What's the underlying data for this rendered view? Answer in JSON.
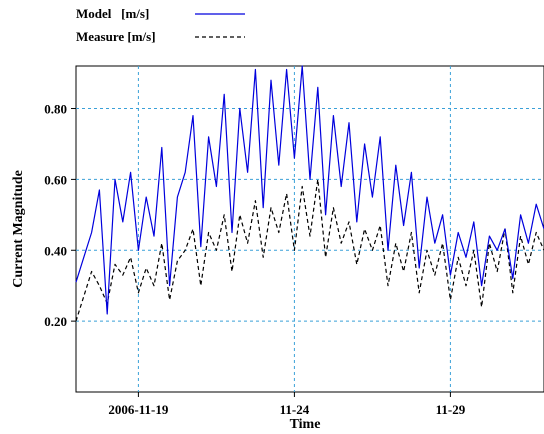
{
  "chart_data": {
    "type": "line",
    "xlabel": "Time",
    "ylabel": "Current Magnitude",
    "x_range": [
      "2006-11-17",
      "2006-12-02"
    ],
    "ylim": [
      0,
      0.92
    ],
    "y_ticks": [
      {
        "value": 0.2,
        "label": "0.20"
      },
      {
        "value": 0.4,
        "label": "0.40"
      },
      {
        "value": 0.6,
        "label": "0.60"
      },
      {
        "value": 0.8,
        "label": "0.80"
      }
    ],
    "x_ticks": [
      {
        "value": "2006-11-19",
        "label": "2006-11-19"
      },
      {
        "value": "2006-11-24",
        "label": "11-24"
      },
      {
        "value": "2006-11-29",
        "label": "11-29"
      }
    ],
    "grid": true,
    "legend_position": "top-left",
    "colors": {
      "model": "#0000dd",
      "measure": "#000000",
      "grid": "#3aa0d8"
    },
    "series": [
      {
        "name": "Model   [m/s]",
        "style": "solid",
        "color": "#0000dd",
        "x": [
          "2006-11-17 00:00",
          "2006-11-17 06:00",
          "2006-11-17 12:00",
          "2006-11-17 18:00",
          "2006-11-18 00:00",
          "2006-11-18 06:00",
          "2006-11-18 12:00",
          "2006-11-18 18:00",
          "2006-11-19 00:00",
          "2006-11-19 06:00",
          "2006-11-19 12:00",
          "2006-11-19 18:00",
          "2006-11-20 00:00",
          "2006-11-20 06:00",
          "2006-11-20 12:00",
          "2006-11-20 18:00",
          "2006-11-21 00:00",
          "2006-11-21 06:00",
          "2006-11-21 12:00",
          "2006-11-21 18:00",
          "2006-11-22 00:00",
          "2006-11-22 06:00",
          "2006-11-22 12:00",
          "2006-11-22 18:00",
          "2006-11-23 00:00",
          "2006-11-23 06:00",
          "2006-11-23 12:00",
          "2006-11-23 18:00",
          "2006-11-24 00:00",
          "2006-11-24 06:00",
          "2006-11-24 12:00",
          "2006-11-24 18:00",
          "2006-11-25 00:00",
          "2006-11-25 06:00",
          "2006-11-25 12:00",
          "2006-11-25 18:00",
          "2006-11-26 00:00",
          "2006-11-26 06:00",
          "2006-11-26 12:00",
          "2006-11-26 18:00",
          "2006-11-27 00:00",
          "2006-11-27 06:00",
          "2006-11-27 12:00",
          "2006-11-27 18:00",
          "2006-11-28 00:00",
          "2006-11-28 06:00",
          "2006-11-28 12:00",
          "2006-11-28 18:00",
          "2006-11-29 00:00",
          "2006-11-29 06:00",
          "2006-11-29 12:00",
          "2006-11-29 18:00",
          "2006-11-30 00:00",
          "2006-11-30 06:00",
          "2006-11-30 12:00",
          "2006-11-30 18:00",
          "2006-12-01 00:00",
          "2006-12-01 06:00",
          "2006-12-01 12:00",
          "2006-12-01 18:00",
          "2006-12-02 00:00"
        ],
        "y": [
          0.31,
          0.38,
          0.45,
          0.57,
          0.22,
          0.6,
          0.48,
          0.62,
          0.4,
          0.55,
          0.44,
          0.69,
          0.3,
          0.55,
          0.62,
          0.78,
          0.41,
          0.72,
          0.58,
          0.84,
          0.45,
          0.8,
          0.62,
          0.91,
          0.52,
          0.88,
          0.64,
          0.91,
          0.66,
          0.92,
          0.6,
          0.86,
          0.5,
          0.78,
          0.58,
          0.76,
          0.48,
          0.7,
          0.55,
          0.72,
          0.4,
          0.64,
          0.47,
          0.62,
          0.35,
          0.55,
          0.42,
          0.5,
          0.33,
          0.45,
          0.38,
          0.48,
          0.3,
          0.44,
          0.4,
          0.46,
          0.32,
          0.5,
          0.42,
          0.53,
          0.46
        ]
      },
      {
        "name": "Measure [m/s]",
        "style": "dashed",
        "color": "#000000",
        "x": [
          "2006-11-17 00:00",
          "2006-11-17 06:00",
          "2006-11-17 12:00",
          "2006-11-17 18:00",
          "2006-11-18 00:00",
          "2006-11-18 06:00",
          "2006-11-18 12:00",
          "2006-11-18 18:00",
          "2006-11-19 00:00",
          "2006-11-19 06:00",
          "2006-11-19 12:00",
          "2006-11-19 18:00",
          "2006-11-20 00:00",
          "2006-11-20 06:00",
          "2006-11-20 12:00",
          "2006-11-20 18:00",
          "2006-11-21 00:00",
          "2006-11-21 06:00",
          "2006-11-21 12:00",
          "2006-11-21 18:00",
          "2006-11-22 00:00",
          "2006-11-22 06:00",
          "2006-11-22 12:00",
          "2006-11-22 18:00",
          "2006-11-23 00:00",
          "2006-11-23 06:00",
          "2006-11-23 12:00",
          "2006-11-23 18:00",
          "2006-11-24 00:00",
          "2006-11-24 06:00",
          "2006-11-24 12:00",
          "2006-11-24 18:00",
          "2006-11-25 00:00",
          "2006-11-25 06:00",
          "2006-11-25 12:00",
          "2006-11-25 18:00",
          "2006-11-26 00:00",
          "2006-11-26 06:00",
          "2006-11-26 12:00",
          "2006-11-26 18:00",
          "2006-11-27 00:00",
          "2006-11-27 06:00",
          "2006-11-27 12:00",
          "2006-11-27 18:00",
          "2006-11-28 00:00",
          "2006-11-28 06:00",
          "2006-11-28 12:00",
          "2006-11-28 18:00",
          "2006-11-29 00:00",
          "2006-11-29 06:00",
          "2006-11-29 12:00",
          "2006-11-29 18:00",
          "2006-11-30 00:00",
          "2006-11-30 06:00",
          "2006-11-30 12:00",
          "2006-11-30 18:00",
          "2006-12-01 00:00",
          "2006-12-01 06:00",
          "2006-12-01 12:00",
          "2006-12-01 18:00",
          "2006-12-02 00:00"
        ],
        "y": [
          0.2,
          0.27,
          0.34,
          0.3,
          0.25,
          0.36,
          0.33,
          0.38,
          0.28,
          0.35,
          0.3,
          0.42,
          0.26,
          0.37,
          0.4,
          0.46,
          0.3,
          0.45,
          0.4,
          0.5,
          0.34,
          0.5,
          0.42,
          0.54,
          0.38,
          0.52,
          0.45,
          0.56,
          0.4,
          0.58,
          0.44,
          0.6,
          0.38,
          0.52,
          0.42,
          0.48,
          0.36,
          0.46,
          0.4,
          0.47,
          0.3,
          0.42,
          0.34,
          0.45,
          0.28,
          0.4,
          0.33,
          0.42,
          0.26,
          0.38,
          0.3,
          0.4,
          0.24,
          0.42,
          0.34,
          0.46,
          0.28,
          0.44,
          0.36,
          0.45,
          0.4
        ]
      }
    ]
  }
}
